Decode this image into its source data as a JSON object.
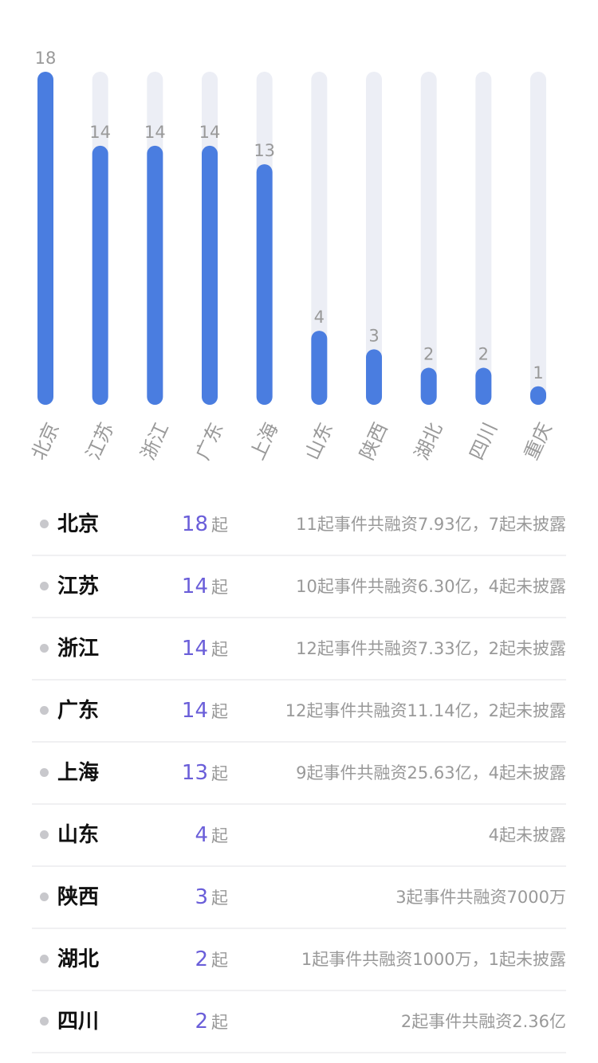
{
  "chart_data": {
    "type": "bar",
    "categories": [
      "北京",
      "江苏",
      "浙江",
      "广东",
      "上海",
      "山东",
      "陕西",
      "湖北",
      "四川",
      "重庆"
    ],
    "values": [
      18,
      14,
      14,
      14,
      13,
      4,
      3,
      2,
      2,
      1
    ],
    "ylim": [
      0,
      18
    ],
    "grid": false,
    "bar_color": "#4a7de0",
    "track_color": "#eceef5",
    "label_color": "#999999"
  },
  "rows": [
    {
      "name": "北京",
      "count": "18",
      "unit": "起",
      "detail": "11起事件共融资7.93亿，7起未披露"
    },
    {
      "name": "江苏",
      "count": "14",
      "unit": "起",
      "detail": "10起事件共融资6.30亿，4起未披露"
    },
    {
      "name": "浙江",
      "count": "14",
      "unit": "起",
      "detail": "12起事件共融资7.33亿，2起未披露"
    },
    {
      "name": "广东",
      "count": "14",
      "unit": "起",
      "detail": "12起事件共融资11.14亿，2起未披露"
    },
    {
      "name": "上海",
      "count": "13",
      "unit": "起",
      "detail": "9起事件共融资25.63亿，4起未披露"
    },
    {
      "name": "山东",
      "count": "4",
      "unit": "起",
      "detail": "4起未披露"
    },
    {
      "name": "陕西",
      "count": "3",
      "unit": "起",
      "detail": "3起事件共融资7000万"
    },
    {
      "name": "湖北",
      "count": "2",
      "unit": "起",
      "detail": "1起事件共融资1000万，1起未披露"
    },
    {
      "name": "四川",
      "count": "2",
      "unit": "起",
      "detail": "2起事件共融资2.36亿"
    }
  ],
  "colors": {
    "accent": "#6a5ed9",
    "muted_text": "#999999",
    "name_text": "#111111",
    "dot": "#c8c8cc",
    "divider": "#f0f0f2"
  }
}
